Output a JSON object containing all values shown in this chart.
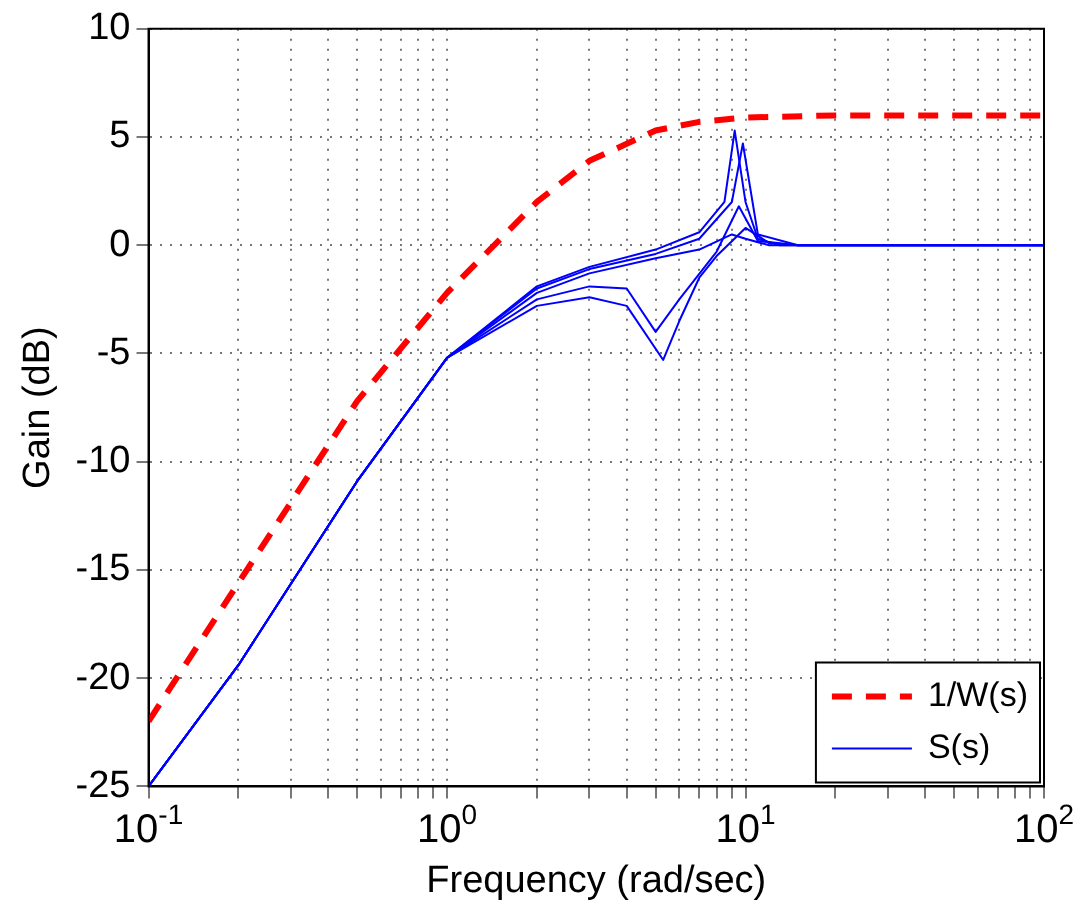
{
  "chart_data": {
    "type": "line",
    "xlabel": "Frequency (rad/sec)",
    "ylabel": "Gain (dB)",
    "log": "x",
    "xlim": [
      0.1,
      100
    ],
    "ylim": [
      -25,
      10
    ],
    "xticks": [
      {
        "value": 0.1,
        "label": "10$^{-1}$"
      },
      {
        "value": 0.2,
        "label": null
      },
      {
        "value": 0.3,
        "label": null
      },
      {
        "value": 0.4,
        "label": null
      },
      {
        "value": 0.5,
        "label": null
      },
      {
        "value": 0.6,
        "label": null
      },
      {
        "value": 0.7,
        "label": null
      },
      {
        "value": 0.8,
        "label": null
      },
      {
        "value": 0.9,
        "label": null
      },
      {
        "value": 1,
        "label": "10$^{0}$"
      },
      {
        "value": 2,
        "label": null
      },
      {
        "value": 3,
        "label": null
      },
      {
        "value": 4,
        "label": null
      },
      {
        "value": 5,
        "label": null
      },
      {
        "value": 6,
        "label": null
      },
      {
        "value": 7,
        "label": null
      },
      {
        "value": 8,
        "label": null
      },
      {
        "value": 9,
        "label": null
      },
      {
        "value": 10,
        "label": "10$^{1}$"
      },
      {
        "value": 20,
        "label": null
      },
      {
        "value": 30,
        "label": null
      },
      {
        "value": 40,
        "label": null
      },
      {
        "value": 50,
        "label": null
      },
      {
        "value": 60,
        "label": null
      },
      {
        "value": 70,
        "label": null
      },
      {
        "value": 80,
        "label": null
      },
      {
        "value": 90,
        "label": null
      },
      {
        "value": 100,
        "label": "10$^{2}$"
      }
    ],
    "yticks": [
      -25,
      -20,
      -15,
      -10,
      -5,
      0,
      5,
      10
    ],
    "grid": true,
    "legend": "bottom right",
    "marker": "none",
    "series": [
      {
        "name": "1/W(s)",
        "color": "#ff0000",
        "line_style": "dashed",
        "x": [
          0.1,
          0.2,
          0.5,
          1,
          2,
          3,
          5,
          7,
          10,
          20,
          100
        ],
        "values": [
          -22,
          -15.6,
          -7.2,
          -2.2,
          2,
          3.9,
          5.3,
          5.7,
          5.9,
          6,
          6
        ]
      },
      {
        "name": "S(s)",
        "color": "#0000ff",
        "line_style": "solid",
        "x": [
          0.1,
          0.2,
          0.5,
          1,
          2,
          3,
          5,
          7,
          9,
          10,
          12,
          20,
          100
        ],
        "values": [
          -25,
          -19.4,
          -10.9,
          -5.2,
          -2.2,
          -1.3,
          -0.6,
          -0.2,
          0.5,
          0.3,
          0,
          0,
          0
        ]
      },
      {
        "color": "#0000ff",
        "line_style": "solid",
        "x": [
          0.1,
          0.2,
          0.5,
          1,
          2,
          3,
          5,
          7,
          8.5,
          9.2,
          10,
          11,
          13,
          100
        ],
        "values": [
          -25,
          -19.4,
          -10.9,
          -5.2,
          -1.9,
          -1,
          -0.2,
          0.6,
          2,
          5.3,
          2,
          0.3,
          0,
          0
        ]
      },
      {
        "color": "#0000ff",
        "line_style": "solid",
        "x": [
          0.1,
          0.2,
          0.5,
          1,
          2,
          3,
          4,
          5.3,
          6,
          7,
          8,
          10,
          12,
          15,
          100
        ],
        "values": [
          -25,
          -19.4,
          -10.9,
          -5.2,
          -2.8,
          -2.4,
          -2.8,
          -5.3,
          -3.5,
          -1.5,
          -0.5,
          0.8,
          0.1,
          0,
          0
        ]
      },
      {
        "color": "#0000ff",
        "line_style": "solid",
        "x": [
          0.1,
          0.2,
          0.5,
          1,
          2,
          3,
          4,
          5,
          6,
          8,
          9.5,
          11,
          15,
          100
        ],
        "values": [
          -25,
          -19.4,
          -10.9,
          -5.2,
          -2.5,
          -1.9,
          -2,
          -4,
          -2.5,
          -0.3,
          1.8,
          0.2,
          0,
          0
        ]
      },
      {
        "color": "#0000ff",
        "line_style": "solid",
        "x": [
          0.1,
          0.2,
          0.5,
          1,
          2,
          3,
          5,
          7,
          9,
          9.8,
          11,
          15,
          100
        ],
        "values": [
          -25,
          -19.4,
          -10.9,
          -5.2,
          -2,
          -1.1,
          -0.4,
          0.3,
          2,
          4.7,
          0.5,
          0,
          0
        ]
      }
    ]
  }
}
